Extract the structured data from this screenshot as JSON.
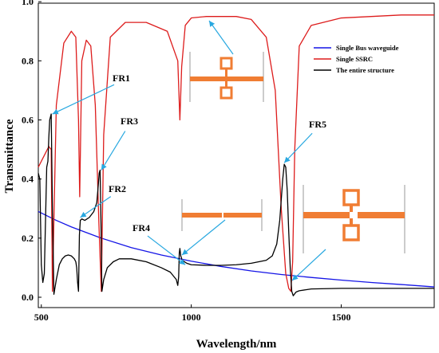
{
  "chart_data": {
    "type": "line",
    "xlabel": "Wavelength/nm",
    "ylabel": "Transmittance",
    "xlim": [
      490,
      1810
    ],
    "ylim": [
      -0.035,
      0.995
    ],
    "xticks": [
      500,
      1000,
      1500
    ],
    "yticks": [
      0.0,
      0.2,
      0.4,
      0.6,
      0.8,
      1.0
    ],
    "tick_labels_x": [
      "500",
      "1000",
      "1500"
    ],
    "tick_labels_y": [
      "0.0",
      "0.2",
      "0.4",
      "0.6",
      "0.8",
      "1.0"
    ],
    "grid": false,
    "legend_position": "top-right",
    "series": [
      {
        "name": "Single Bus waveguide",
        "color": "#1414e6",
        "x": [
          490,
          550,
          600,
          700,
          800,
          900,
          1000,
          1100,
          1200,
          1300,
          1400,
          1500,
          1600,
          1700,
          1810
        ],
        "y": [
          0.29,
          0.26,
          0.238,
          0.2,
          0.168,
          0.143,
          0.122,
          0.104,
          0.089,
          0.077,
          0.067,
          0.058,
          0.05,
          0.043,
          0.035
        ]
      },
      {
        "name": "Single SSRC",
        "color": "#dd1c1c",
        "x": [
          490,
          495,
          505,
          515,
          525,
          533,
          537,
          550,
          575,
          600,
          615,
          624,
          628,
          635,
          650,
          665,
          680,
          692,
          700,
          708,
          730,
          780,
          850,
          920,
          955,
          962,
          968,
          980,
          1000,
          1050,
          1100,
          1150,
          1200,
          1250,
          1280,
          1300,
          1315,
          1325,
          1332,
          1338,
          1345,
          1360,
          1400,
          1500,
          1600,
          1700,
          1810
        ],
        "y": [
          0.44,
          0.45,
          0.47,
          0.49,
          0.51,
          0.5,
          0.02,
          0.65,
          0.86,
          0.9,
          0.88,
          0.6,
          0.34,
          0.8,
          0.87,
          0.85,
          0.65,
          0.25,
          0.02,
          0.55,
          0.88,
          0.93,
          0.93,
          0.9,
          0.8,
          0.6,
          0.78,
          0.92,
          0.945,
          0.95,
          0.95,
          0.95,
          0.94,
          0.88,
          0.7,
          0.3,
          0.08,
          0.03,
          0.02,
          0.12,
          0.5,
          0.85,
          0.92,
          0.945,
          0.95,
          0.955,
          0.955
        ]
      },
      {
        "name": "The entire structure",
        "color": "#000000",
        "x": [
          490,
          495,
          500,
          505,
          510,
          518,
          522,
          525,
          528,
          533,
          537,
          542,
          550,
          560,
          570,
          580,
          590,
          600,
          610,
          615,
          618,
          621,
          624,
          627,
          630,
          635,
          645,
          660,
          675,
          685,
          690,
          693,
          696,
          699,
          702,
          708,
          720,
          740,
          760,
          800,
          850,
          900,
          930,
          950,
          955,
          958,
          960,
          962,
          965,
          970,
          985,
          1000,
          1050,
          1100,
          1150,
          1200,
          1250,
          1270,
          1285,
          1295,
          1300,
          1305,
          1310,
          1315,
          1320,
          1325,
          1330,
          1335,
          1340,
          1345,
          1350,
          1360,
          1380,
          1400,
          1500,
          1600,
          1700,
          1810
        ],
        "y": [
          0.42,
          0.4,
          0.11,
          0.05,
          0.08,
          0.44,
          0.46,
          0.54,
          0.6,
          0.62,
          0.3,
          0.01,
          0.06,
          0.11,
          0.13,
          0.14,
          0.143,
          0.14,
          0.13,
          0.12,
          0.1,
          0.05,
          0.02,
          0.21,
          0.26,
          0.265,
          0.26,
          0.27,
          0.29,
          0.32,
          0.38,
          0.42,
          0.43,
          0.25,
          0.02,
          0.06,
          0.1,
          0.12,
          0.13,
          0.13,
          0.12,
          0.1,
          0.085,
          0.06,
          0.04,
          0.07,
          0.15,
          0.165,
          0.14,
          0.125,
          0.115,
          0.11,
          0.108,
          0.108,
          0.11,
          0.115,
          0.125,
          0.14,
          0.18,
          0.26,
          0.33,
          0.4,
          0.45,
          0.44,
          0.36,
          0.22,
          0.1,
          0.02,
          0.005,
          0.012,
          0.018,
          0.022,
          0.025,
          0.028,
          0.03,
          0.03,
          0.03,
          0.03
        ]
      }
    ],
    "annotations": [
      {
        "label": "FR1",
        "point": [
          537,
          0.62
        ]
      },
      {
        "label": "FR2",
        "point": [
          630,
          0.27
        ]
      },
      {
        "label": "FR3",
        "point": [
          700,
          0.43
        ]
      },
      {
        "label": "FR4",
        "point": [
          980,
          0.11
        ]
      },
      {
        "label": "FR5",
        "point": [
          1310,
          0.455
        ]
      }
    ]
  }
}
